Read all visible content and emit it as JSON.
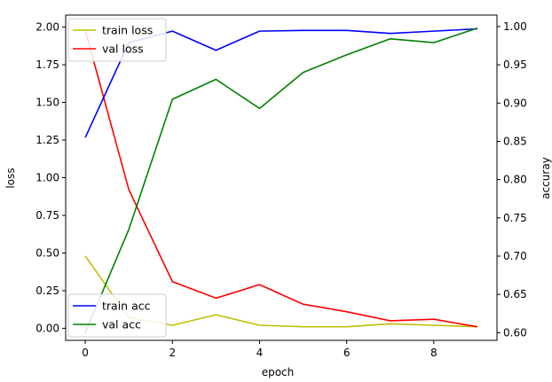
{
  "chart_data": {
    "type": "line",
    "xlabel": "epoch",
    "ylabel_left": "loss",
    "ylabel_right": "accuray",
    "x": [
      0,
      1,
      2,
      3,
      4,
      5,
      6,
      7,
      8,
      9
    ],
    "x_ticks": [
      0,
      2,
      4,
      6,
      8
    ],
    "x_tick_labels": [
      "0",
      "2",
      "4",
      "6",
      "8"
    ],
    "xlim": [
      -0.45,
      9.45
    ],
    "left_axis": {
      "ylim": [
        -0.08,
        2.08
      ],
      "ticks": [
        0.0,
        0.25,
        0.5,
        0.75,
        1.0,
        1.25,
        1.5,
        1.75,
        2.0
      ],
      "tick_labels": [
        "0.00",
        "0.25",
        "0.50",
        "0.75",
        "1.00",
        "1.25",
        "1.50",
        "1.75",
        "2.00"
      ]
    },
    "right_axis": {
      "ylim": [
        0.59,
        1.015
      ],
      "ticks": [
        0.6,
        0.65,
        0.7,
        0.75,
        0.8,
        0.85,
        0.9,
        0.95,
        1.0
      ],
      "tick_labels": [
        "0.60",
        "0.65",
        "0.70",
        "0.75",
        "0.80",
        "0.85",
        "0.90",
        "0.95",
        "1.00"
      ]
    },
    "series": [
      {
        "name": "train loss",
        "axis": "left",
        "color": "#bfbf00",
        "values": [
          0.48,
          0.07,
          0.02,
          0.09,
          0.02,
          0.01,
          0.01,
          0.03,
          0.02,
          0.01
        ]
      },
      {
        "name": "val loss",
        "axis": "left",
        "color": "#ff0000",
        "values": [
          1.98,
          0.92,
          0.31,
          0.2,
          0.29,
          0.16,
          0.11,
          0.05,
          0.06,
          0.01
        ]
      },
      {
        "name": "train acc",
        "axis": "right",
        "color": "#0000ff",
        "values": [
          0.855,
          0.979,
          0.994,
          0.969,
          0.994,
          0.995,
          0.995,
          0.991,
          0.994,
          0.997
        ]
      },
      {
        "name": "val acc",
        "axis": "right",
        "color": "#008000",
        "values": [
          0.6,
          0.735,
          0.905,
          0.931,
          0.893,
          0.94,
          0.963,
          0.984,
          0.979,
          0.998
        ]
      }
    ],
    "legends": [
      {
        "placement": "upper-left",
        "entries": [
          "train loss",
          "val loss"
        ]
      },
      {
        "placement": "lower-left",
        "entries": [
          "train acc",
          "val acc"
        ]
      }
    ],
    "grid": false
  }
}
